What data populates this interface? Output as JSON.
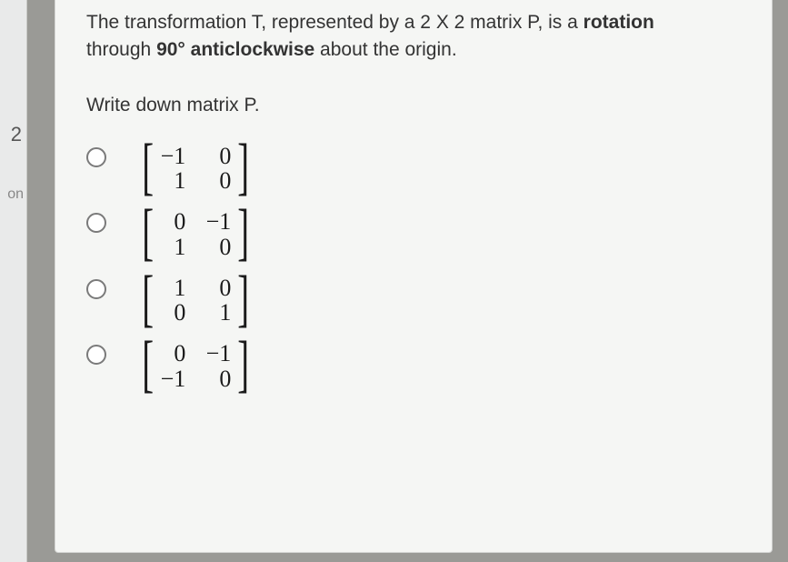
{
  "sidebar": {
    "num": "2",
    "suffix": "on"
  },
  "question": {
    "line1_pre": "The transformation T, represented by a 2 X 2 matrix P, is a ",
    "line1_bold": "rotation",
    "line2_pre": "through ",
    "line2_bold": "90° anticlockwise",
    "line2_post": " about the origin.",
    "prompt": "Write down matrix P."
  },
  "options": [
    {
      "cells": [
        "−1",
        "0",
        "1",
        "0"
      ]
    },
    {
      "cells": [
        "0",
        "−1",
        "1",
        "0"
      ]
    },
    {
      "cells": [
        "1",
        "0",
        "0",
        "1"
      ]
    },
    {
      "cells": [
        "0",
        "−1",
        "−1",
        "0"
      ]
    }
  ],
  "style": {
    "background": "#9a9a96",
    "card_bg": "#f5f6f4",
    "card_border": "#d4d5d3",
    "text_color": "#2c2c2c",
    "radio_border": "#7a7a7a",
    "body_fontsize": 21,
    "matrix_fontsize": 26
  }
}
